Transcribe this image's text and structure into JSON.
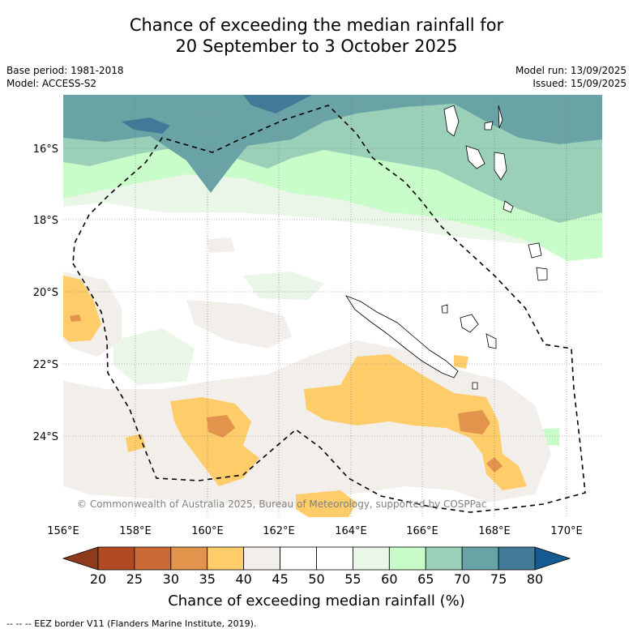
{
  "title_line1": "Chance of exceeding the median rainfall for",
  "title_line2": "20 September to 3 October 2025",
  "base_period": "Base period: 1981-2018",
  "model": "Model: ACCESS-S2",
  "model_run": "Model run: 13/09/2025",
  "issued": "Issued: 15/09/2025",
  "copyright": "© Commonwealth of Australia 2025, Bureau of Meteorology, supported by COSPPac",
  "lat_labels": [
    "16°S",
    "18°S",
    "20°S",
    "22°S",
    "24°S"
  ],
  "lon_labels": [
    "156°E",
    "158°E",
    "160°E",
    "162°E",
    "164°E",
    "166°E",
    "168°E",
    "170°E"
  ],
  "colorbar": {
    "ticks": [
      "20",
      "25",
      "30",
      "35",
      "40",
      "45",
      "50",
      "55",
      "60",
      "65",
      "70",
      "75",
      "80"
    ],
    "colors": [
      "#b04a22",
      "#cc6a36",
      "#e2934c",
      "#fecd6a",
      "#f2eeea",
      "#ffffff",
      "#ffffff",
      "#eaf6e8",
      "#c8fcc8",
      "#9bd0b8",
      "#6aa3a6",
      "#417a98"
    ],
    "low_color": "#8e3a1c",
    "high_color": "#155a90",
    "title": "Chance of exceeding median rainfall (%)"
  },
  "footnote": "--  --  -- EEZ border V11 (Flanders Marine Institute, 2019)."
}
